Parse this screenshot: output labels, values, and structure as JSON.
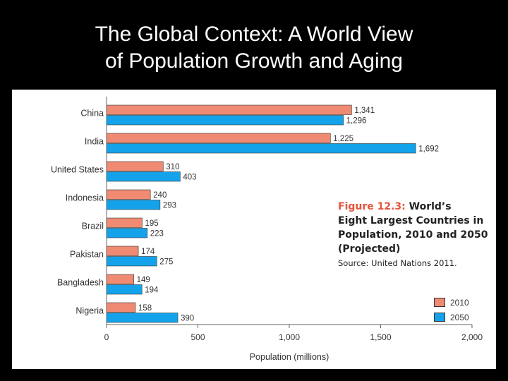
{
  "slide": {
    "title_line1": "The Global Context: A World View",
    "title_line2": "of Population Growth and Aging"
  },
  "colors": {
    "series_2010": "#f08a72",
    "series_2050": "#14a3ea",
    "figure_label": "#e4553c"
  },
  "caption": {
    "figure_label": "Figure 12.3:",
    "line1_rest": "World’s",
    "line2": "Eight Largest Countries in",
    "line3": "Population, 2010 and 2050",
    "line4": "(Projected)",
    "source": "Source: United Nations 2011."
  },
  "chart_data": {
    "type": "bar",
    "orientation": "horizontal",
    "title": "World’s Eight Largest Countries in Population, 2010 and 2050 (Projected)",
    "categories": [
      "China",
      "India",
      "United States",
      "Indonesia",
      "Brazil",
      "Pakistan",
      "Bangladesh",
      "Nigeria"
    ],
    "series": [
      {
        "name": "2010",
        "values": [
          1341,
          1225,
          310,
          240,
          195,
          174,
          149,
          158
        ]
      },
      {
        "name": "2050",
        "values": [
          1296,
          1692,
          403,
          293,
          223,
          275,
          194,
          390
        ]
      }
    ],
    "value_labels": {
      "2010": [
        "1,341",
        "1,225",
        "310",
        "240",
        "195",
        "174",
        "149",
        "158"
      ],
      "2050": [
        "1,296",
        "1,692",
        "403",
        "293",
        "223",
        "275",
        "194",
        "390"
      ]
    },
    "xlabel": "Population (millions)",
    "ylabel": "",
    "xlim": [
      0,
      2000
    ],
    "ticks": [
      0,
      500,
      1000,
      1500,
      2000
    ],
    "tick_labels": [
      "0",
      "500",
      "1,000",
      "1,500",
      "2,000"
    ],
    "grid": false,
    "legend": [
      "2010",
      "2050"
    ],
    "legend_position": "bottom-right"
  }
}
